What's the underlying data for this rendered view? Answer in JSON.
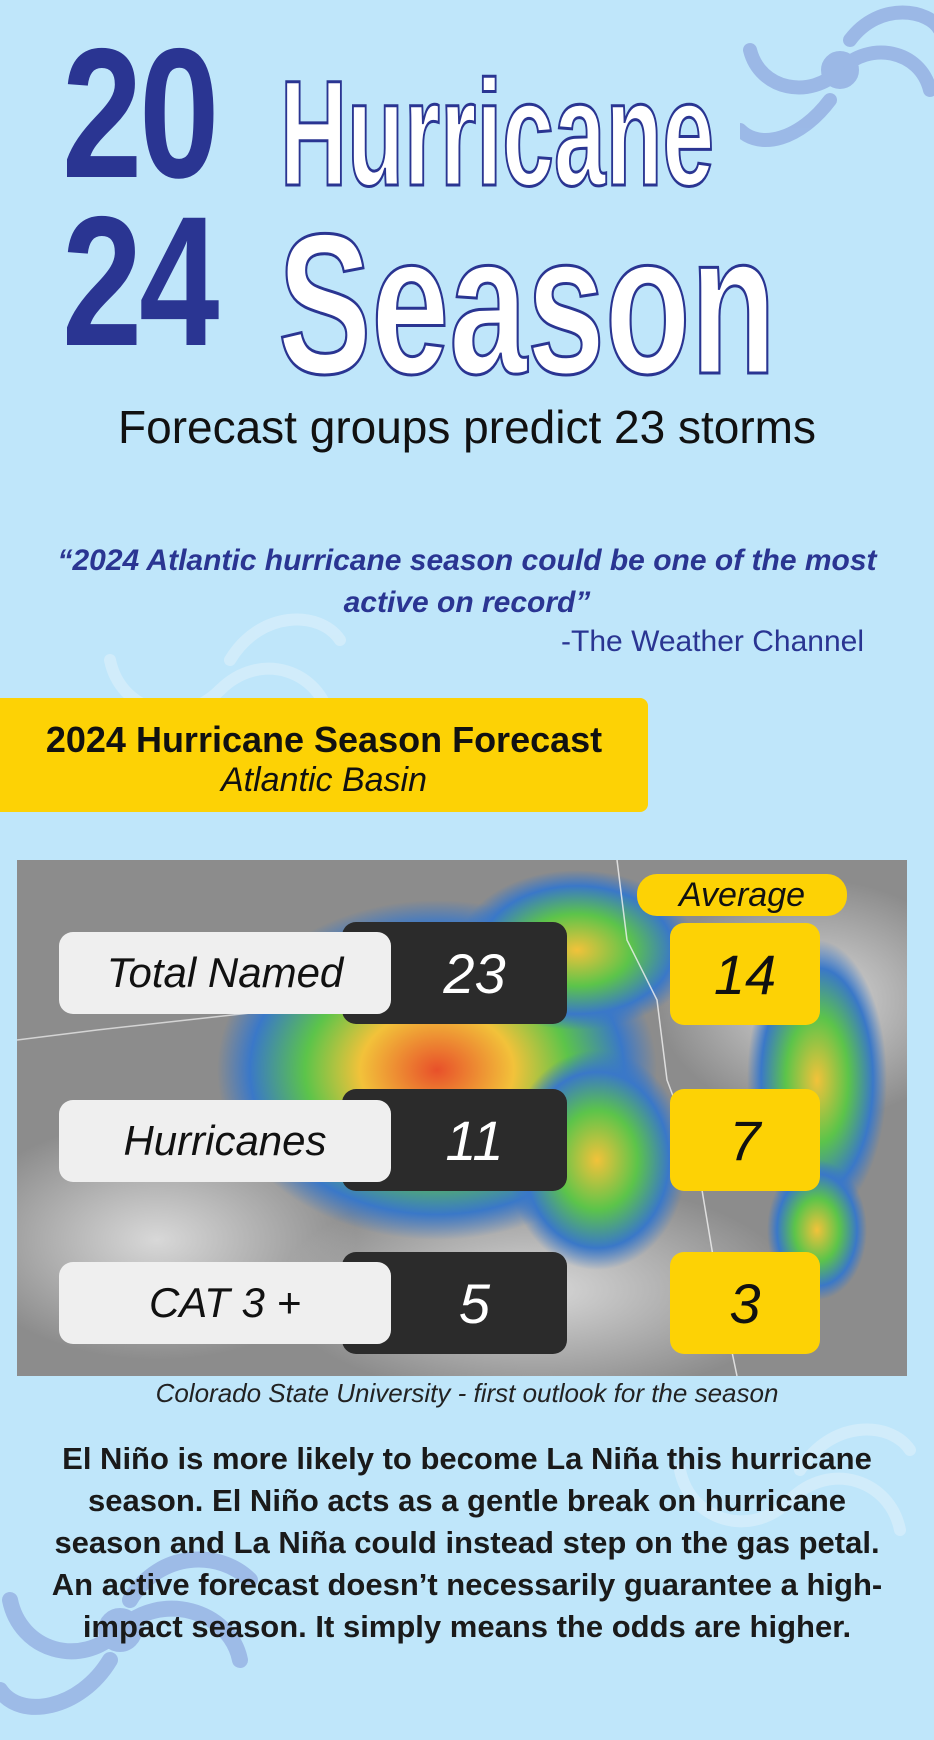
{
  "header": {
    "year_top": "20",
    "year_bottom": "24",
    "title_line1": "Hurricane",
    "title_line2": "Season",
    "subtitle": "Forecast groups predict 23 storms"
  },
  "quote": {
    "text": "“2024 Atlantic hurricane season could be one of the most active on record”",
    "attribution": "-The Weather Channel"
  },
  "forecast_banner": {
    "title": "2024 Hurricane Season Forecast",
    "subtitle": "Atlantic Basin"
  },
  "forecast_table": {
    "average_header": "Average",
    "rows": [
      {
        "label": "Total Named",
        "forecast": "23",
        "average": "14"
      },
      {
        "label": "Hurricanes",
        "forecast": "11",
        "average": "7"
      },
      {
        "label": "CAT 3 +",
        "forecast": "5",
        "average": "3"
      }
    ]
  },
  "caption": "Colorado State University - first outlook for the season",
  "body": "El Niño is more likely to become La Niña this hurricane season. El Niño acts as a gentle break on hurricane season and La Niña could instead step on the gas petal. An active forecast doesn’t necessarily guarantee a high-impact season. It simply means the odds are higher.",
  "colors": {
    "background": "#bfe6fa",
    "navy": "#2a3592",
    "yellow": "#fdd205",
    "dark_box": "#2b2b2b"
  }
}
